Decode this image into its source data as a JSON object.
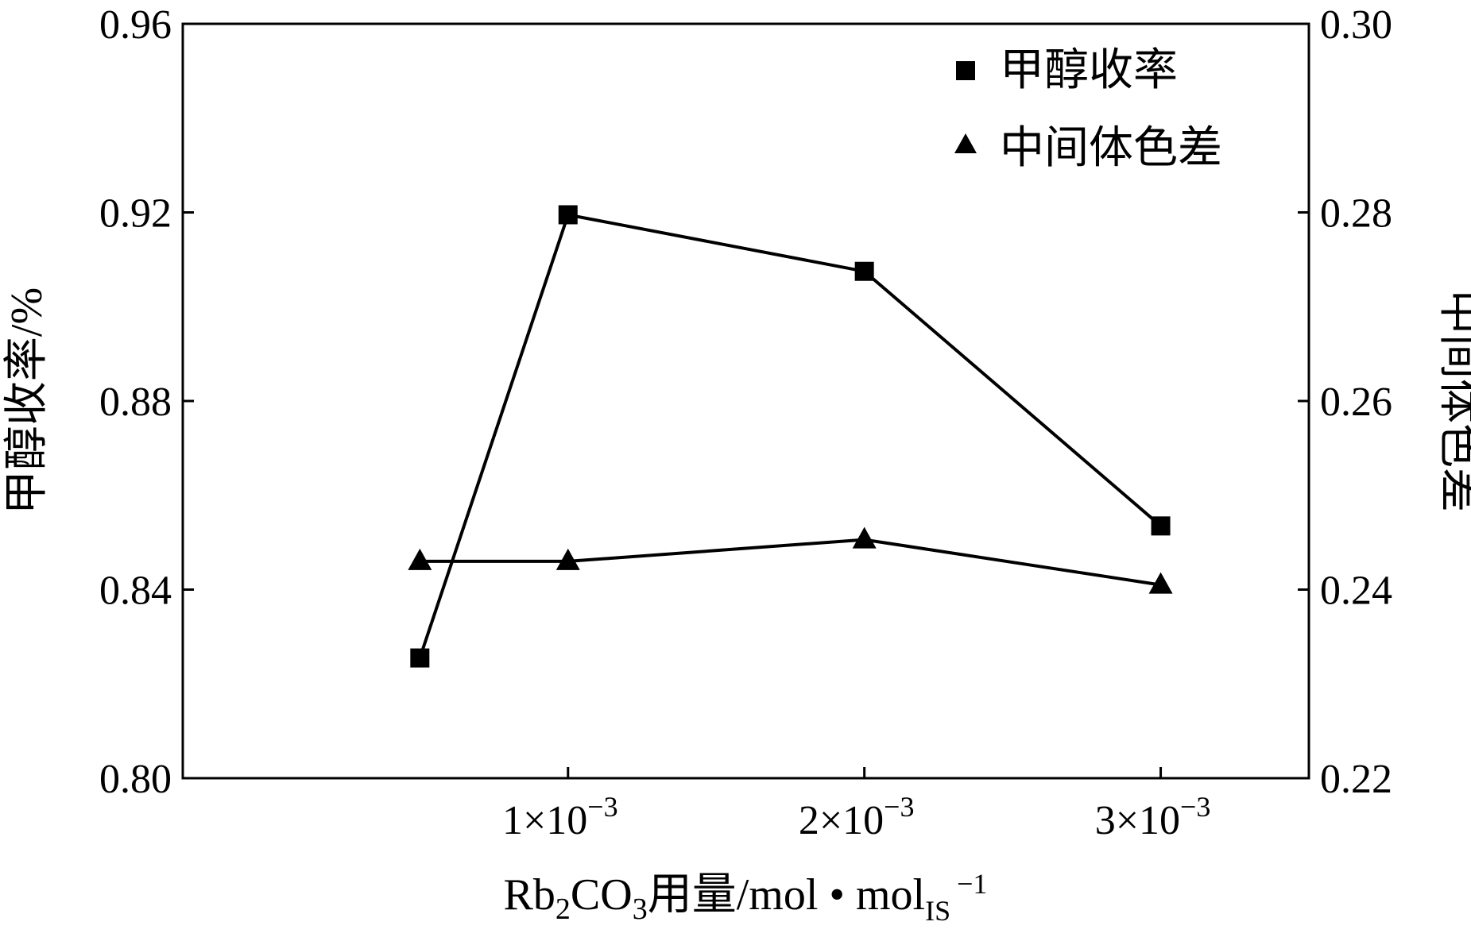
{
  "chart_data": {
    "type": "line",
    "x": [
      0.0005,
      0.001,
      0.002,
      0.003
    ],
    "x_ticks": [
      {
        "value": 0.001,
        "mantissa": "1",
        "times": "×",
        "base": "10",
        "exponent": "−3"
      },
      {
        "value": 0.002,
        "mantissa": "2",
        "times": "×",
        "base": "10",
        "exponent": "−3"
      },
      {
        "value": 0.003,
        "mantissa": "3",
        "times": "×",
        "base": "10",
        "exponent": "−3"
      }
    ],
    "xlim": [
      -0.0003,
      0.0035
    ],
    "xlabel": {
      "a": "Rb",
      "sub1": "2",
      "b": "CO",
      "sub2": "3",
      "c": "用量/mol • mol",
      "sub3": "IS",
      "sup": "−1"
    },
    "y_left": {
      "label": "甲醇收率/%",
      "ylim": [
        0.8,
        0.96
      ],
      "ticks": [
        "0.80",
        "0.84",
        "0.88",
        "0.92",
        "0.96"
      ]
    },
    "y_right": {
      "label": "中间体色差",
      "ylim": [
        0.22,
        0.3
      ],
      "ticks": [
        "0.22",
        "0.24",
        "0.26",
        "0.28",
        "0.30"
      ]
    },
    "series": [
      {
        "name": "甲醇收率",
        "marker": "square",
        "axis": "left",
        "values": [
          0.8255,
          0.9195,
          0.9075,
          0.8535
        ]
      },
      {
        "name": "中间体色差",
        "marker": "triangle",
        "axis": "right",
        "values": [
          0.243,
          0.243,
          0.2453,
          0.2405
        ]
      }
    ],
    "legend": "top-right",
    "grid": false
  }
}
